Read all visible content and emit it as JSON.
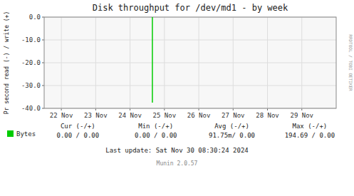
{
  "chart_data": {
    "type": "line",
    "title": "Disk throughput for /dev/md1 - by week",
    "y_label": "Pr second read (-) / write (+)",
    "x": [
      24.65,
      24.65
    ],
    "series": [
      {
        "name": "Bytes",
        "color": "#00cc00",
        "values": [
          -37.5,
          0.0
        ]
      }
    ],
    "xlim": [
      21.5,
      30.0
    ],
    "xticks": [
      {
        "value": 22,
        "label": "22 Nov"
      },
      {
        "value": 23,
        "label": "23 Nov"
      },
      {
        "value": 24,
        "label": "24 Nov"
      },
      {
        "value": 25,
        "label": "25 Nov"
      },
      {
        "value": 26,
        "label": "26 Nov"
      },
      {
        "value": 27,
        "label": "27 Nov"
      },
      {
        "value": 28,
        "label": "28 Nov"
      },
      {
        "value": 29,
        "label": "29 Nov"
      }
    ],
    "ylim": [
      -40.0,
      0.0
    ],
    "yticks": [
      {
        "value": 0.0,
        "label": "0.0"
      },
      {
        "value": -10.0,
        "label": "-10.0"
      },
      {
        "value": -20.0,
        "label": "-20.0"
      },
      {
        "value": -30.0,
        "label": "-30.0"
      },
      {
        "value": -40.0,
        "label": "-40.0"
      }
    ],
    "grid": true,
    "legend": "bottom",
    "annotations": [
      "Cur (-/+)",
      "Min (-/+)",
      "Avg (-/+)",
      "Max (-/+)",
      "0.00 /  0.00",
      "0.00 /  0.00",
      "91.75m/  0.00",
      "194.69 /  0.00",
      "Last update: Sat Nov 30 08:30:24 2024",
      "Munin 2.0.57",
      "RRDTOOL / TOBI OETIKER"
    ]
  }
}
